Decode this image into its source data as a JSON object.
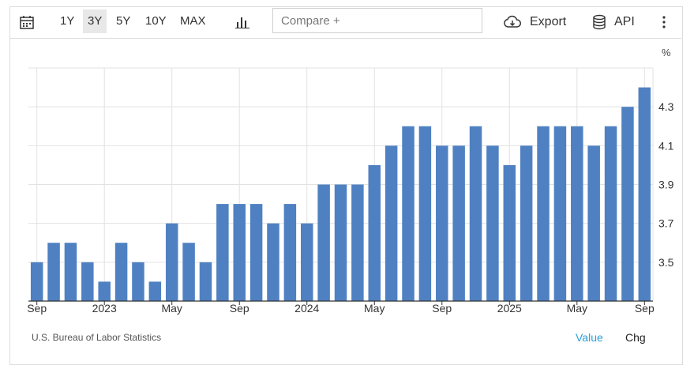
{
  "toolbar": {
    "ranges": [
      "1Y",
      "3Y",
      "5Y",
      "10Y",
      "MAX"
    ],
    "active_range": "3Y",
    "compare_placeholder": "Compare +",
    "export_label": "Export",
    "api_label": "API"
  },
  "footer": {
    "source": "U.S. Bureau of Labor Statistics",
    "value_tab": "Value",
    "chg_tab": "Chg"
  },
  "colors": {
    "bar": "#4f81c2",
    "active_tab": "#2a9fd8",
    "grid": "#e2e2e2"
  },
  "chart_data": {
    "type": "bar",
    "title": "",
    "unit": "%",
    "x_tick_labels": [
      "Sep",
      "2023",
      "May",
      "Sep",
      "2024",
      "May",
      "Sep",
      "2025",
      "May",
      "Sep"
    ],
    "x_tick_bar_index": [
      0,
      4,
      8,
      12,
      16,
      20,
      24,
      28,
      32,
      36
    ],
    "y_ticks": [
      3.5,
      3.7,
      3.9,
      4.1,
      4.3
    ],
    "ylim": [
      3.3,
      4.5
    ],
    "grid": true,
    "categories": [
      "Sep 2022",
      "Oct 2022",
      "Nov 2022",
      "Dec 2022",
      "Jan 2023",
      "Feb 2023",
      "Mar 2023",
      "Apr 2023",
      "May 2023",
      "Jun 2023",
      "Jul 2023",
      "Aug 2023",
      "Sep 2023",
      "Oct 2023",
      "Nov 2023",
      "Dec 2023",
      "Jan 2024",
      "Feb 2024",
      "Mar 2024",
      "Apr 2024",
      "May 2024",
      "Jun 2024",
      "Jul 2024",
      "Aug 2024",
      "Sep 2024",
      "Oct 2024",
      "Nov 2024",
      "Dec 2024",
      "Jan 2025",
      "Feb 2025",
      "Mar 2025",
      "Apr 2025",
      "May 2025",
      "Jun 2025",
      "Jul 2025",
      "Aug 2025",
      "Sep 2025"
    ],
    "values": [
      3.5,
      3.6,
      3.6,
      3.5,
      3.4,
      3.6,
      3.5,
      3.4,
      3.7,
      3.6,
      3.5,
      3.8,
      3.8,
      3.8,
      3.7,
      3.8,
      3.7,
      3.9,
      3.9,
      3.9,
      4.0,
      4.1,
      4.2,
      4.2,
      4.1,
      4.1,
      4.2,
      4.1,
      4.0,
      4.1,
      4.2,
      4.2,
      4.2,
      4.1,
      4.2,
      4.3,
      4.4
    ]
  }
}
